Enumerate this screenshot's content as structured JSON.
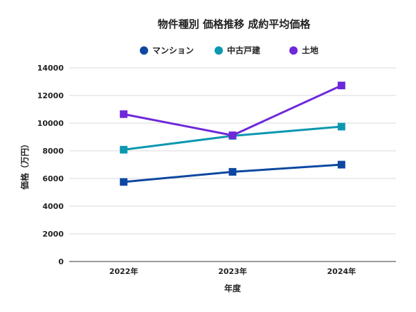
{
  "chart_data": {
    "type": "line",
    "title": "物件種別 価格推移 成約平均価格",
    "xlabel": "年度",
    "ylabel": "価格（万円）",
    "categories": [
      "2022年",
      "2023年",
      "2024年"
    ],
    "ylim": [
      0,
      14000
    ],
    "yticks": [
      0,
      2000,
      4000,
      6000,
      8000,
      10000,
      12000,
      14000
    ],
    "grid": true,
    "legend_position": "top",
    "marker": "square",
    "series": [
      {
        "name": "マンション",
        "color": "#0d47a1",
        "values": [
          5750,
          6480,
          7000
        ]
      },
      {
        "name": "中古戸建",
        "color": "#0b98b0",
        "values": [
          8080,
          9080,
          9750
        ]
      },
      {
        "name": "土地",
        "color": "#6d28d9",
        "values": [
          10650,
          9120,
          12720
        ]
      }
    ]
  }
}
